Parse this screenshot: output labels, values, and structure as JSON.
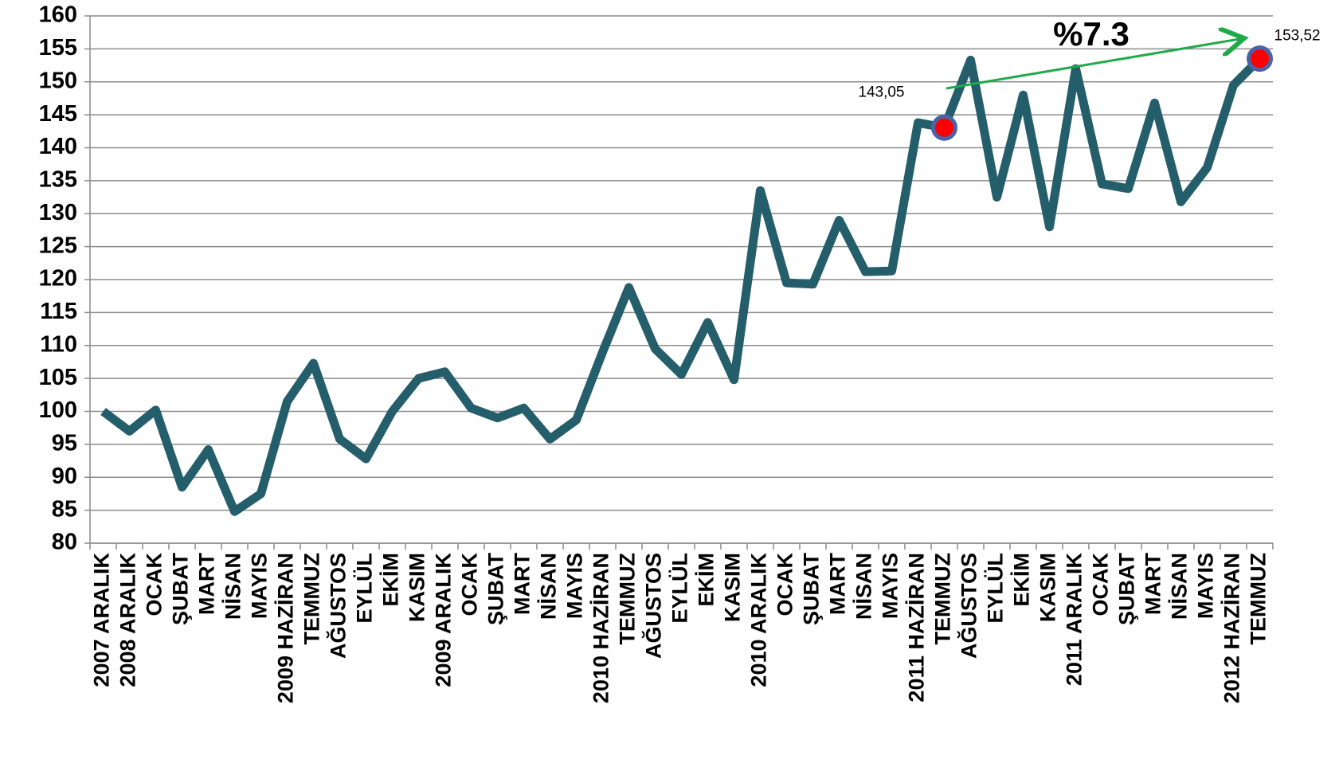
{
  "chart_data": {
    "type": "line",
    "categories": [
      "2007 ARALIK",
      "2008 ARALIK",
      "OCAK",
      "ŞUBAT",
      "MART",
      "NİSAN",
      "MAYIS",
      "2009 HAZİRAN",
      "TEMMUZ",
      "AĞUSTOS",
      "EYLÜL",
      "EKİM",
      "KASIM",
      "2009 ARALIK",
      "OCAK",
      "ŞUBAT",
      "MART",
      "NİSAN",
      "MAYIS",
      "2010 HAZİRAN",
      "TEMMUZ",
      "AĞUSTOS",
      "EYLÜL",
      "EKİM",
      "KASIM",
      "2010 ARALIK",
      "OCAK",
      "ŞUBAT",
      "MART",
      "NİSAN",
      "MAYIS",
      "2011 HAZİRAN",
      "TEMMUZ",
      "AĞUSTOS",
      "EYLÜL",
      "EKİM",
      "KASIM",
      "2011 ARALIK",
      "OCAK",
      "ŞUBAT",
      "MART",
      "NİSAN",
      "MAYIS",
      "2012 HAZİRAN",
      "TEMMUZ"
    ],
    "values": [
      100,
      97,
      100.2,
      88.5,
      94.2,
      84.8,
      87.5,
      101.5,
      107.3,
      95.8,
      92.8,
      100,
      105,
      106,
      100.5,
      99,
      100.5,
      95.8,
      98.7,
      109,
      118.8,
      109.5,
      105.6,
      113.5,
      104.8,
      133.5,
      119.5,
      119.3,
      129,
      121.2,
      121.3,
      143.8,
      143.05,
      153.3,
      132.5,
      148,
      128,
      152,
      134.5,
      133.8,
      146.8,
      131.8,
      137,
      149.5,
      153.52
    ],
    "value_labels": [
      null,
      null,
      null,
      null,
      null,
      null,
      null,
      null,
      null,
      null,
      null,
      null,
      null,
      null,
      null,
      null,
      null,
      null,
      null,
      null,
      null,
      null,
      null,
      null,
      null,
      null,
      null,
      null,
      null,
      null,
      null,
      null,
      "143,05",
      null,
      null,
      null,
      null,
      null,
      null,
      null,
      null,
      null,
      null,
      null,
      "153,52"
    ],
    "color": "#255e6b",
    "highlight_color": "#ff0000",
    "annotation": "%7.3",
    "ylim": [
      80,
      160
    ],
    "yticks": [
      80,
      85,
      90,
      95,
      100,
      105,
      110,
      115,
      120,
      125,
      130,
      135,
      140,
      145,
      150,
      155,
      160
    ],
    "grid": true
  }
}
